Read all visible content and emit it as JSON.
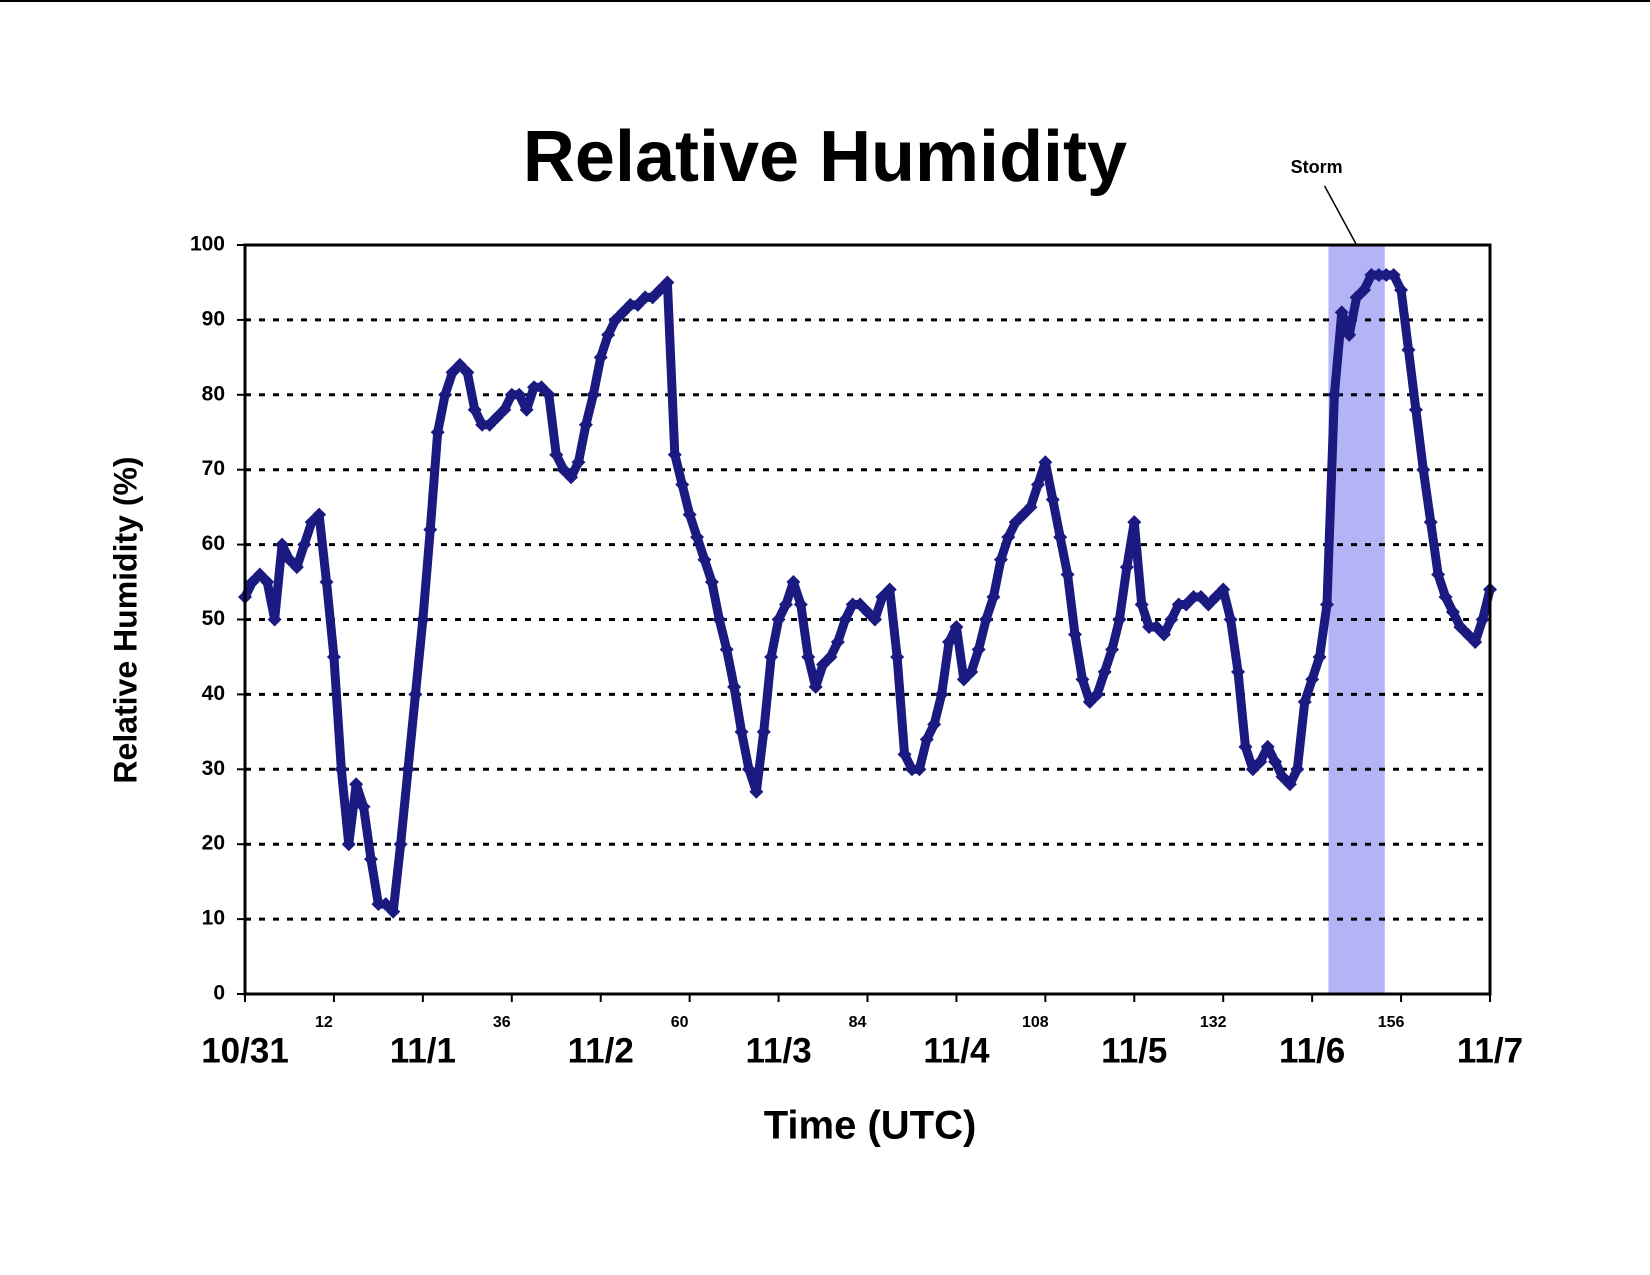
{
  "chart_data": {
    "type": "scatter",
    "title": "Relative Humidity",
    "x_label": "Time (UTC)",
    "y_label": "Relative Humidity (%)",
    "xlim": [
      0,
      168
    ],
    "xticks": [
      {
        "value": 0,
        "label": "10/31"
      },
      12,
      {
        "value": 24,
        "label": "11/1"
      },
      36,
      {
        "value": 48,
        "label": "11/2"
      },
      60,
      {
        "value": 72,
        "label": "11/3"
      },
      84,
      {
        "value": 96,
        "label": "11/4"
      },
      108,
      {
        "value": 120,
        "label": "11/5"
      },
      132,
      {
        "value": 144,
        "label": "11/6"
      },
      156,
      {
        "value": 168,
        "label": "11/7"
      }
    ],
    "ylim": [
      0,
      100
    ],
    "yticks": [
      0,
      10,
      20,
      30,
      40,
      50,
      60,
      70,
      80,
      90,
      100
    ],
    "grid": true,
    "annotation": {
      "text": "Storm",
      "span": [
        146.2,
        153.8
      ],
      "color": "#b3b3f5"
    },
    "series": [
      {
        "color": "#1a1a80",
        "x": [
          0,
          1,
          2,
          3,
          4,
          5,
          6,
          7,
          8,
          9,
          10,
          11,
          12,
          13,
          14,
          15,
          16,
          17,
          18,
          19,
          20,
          21,
          22,
          23,
          24,
          25,
          26,
          27,
          28,
          29,
          30,
          31,
          32,
          33,
          34,
          35,
          36,
          37,
          38,
          39,
          40,
          41,
          42,
          43,
          44,
          45,
          46,
          47,
          48,
          49,
          50,
          51,
          52,
          53,
          54,
          55,
          56,
          57,
          58,
          59,
          60,
          61,
          62,
          63,
          64,
          65,
          66,
          67,
          68,
          69,
          70,
          71,
          72,
          73,
          74,
          75,
          76,
          77,
          78,
          79,
          80,
          81,
          82,
          83,
          84,
          85,
          86,
          87,
          88,
          89,
          90,
          91,
          92,
          93,
          94,
          95,
          96,
          97,
          98,
          99,
          100,
          101,
          102,
          103,
          104,
          105,
          106,
          107,
          108,
          109,
          110,
          111,
          112,
          113,
          114,
          115,
          116,
          117,
          118,
          119,
          120,
          121,
          122,
          123,
          124,
          125,
          126,
          127,
          128,
          129,
          130,
          131,
          132,
          133,
          134,
          135,
          136,
          137,
          138,
          139,
          140,
          141,
          142,
          143,
          144,
          145,
          146,
          147,
          148,
          149,
          150,
          151,
          152,
          153,
          154,
          155,
          156,
          157,
          158,
          159,
          160,
          161,
          162,
          163,
          164,
          165,
          166,
          167,
          168
        ],
        "values": [
          53,
          55,
          56,
          55,
          50,
          60,
          58,
          57,
          60,
          63,
          64,
          55,
          45,
          30,
          20,
          28,
          25,
          18,
          12,
          12,
          11,
          20,
          30,
          40,
          50,
          62,
          75,
          80,
          83,
          84,
          83,
          78,
          76,
          76,
          77,
          78,
          80,
          80,
          78,
          81,
          81,
          80,
          72,
          70,
          69,
          71,
          76,
          80,
          85,
          88,
          90,
          91,
          92,
          92,
          93,
          93,
          94,
          95,
          72,
          68,
          64,
          61,
          58,
          55,
          50,
          46,
          41,
          35,
          30,
          27,
          35,
          45,
          50,
          52,
          55,
          52,
          45,
          41,
          44,
          45,
          47,
          50,
          52,
          52,
          51,
          50,
          53,
          54,
          45,
          32,
          30,
          30,
          34,
          36,
          40,
          47,
          49,
          42,
          43,
          46,
          50,
          53,
          58,
          61,
          63,
          64,
          65,
          68,
          71,
          66,
          61,
          56,
          48,
          42,
          39,
          40,
          43,
          46,
          50,
          57,
          63,
          52,
          49,
          49,
          48,
          50,
          52,
          52,
          53,
          53,
          52,
          53,
          54,
          50,
          43,
          33,
          30,
          31,
          33,
          31,
          29,
          28,
          30,
          39,
          42,
          45,
          52,
          80,
          91,
          88,
          93,
          94,
          96,
          96,
          96,
          96,
          94,
          86,
          78,
          70,
          63,
          56,
          53,
          51,
          49,
          48,
          47,
          50,
          54
        ]
      }
    ]
  }
}
